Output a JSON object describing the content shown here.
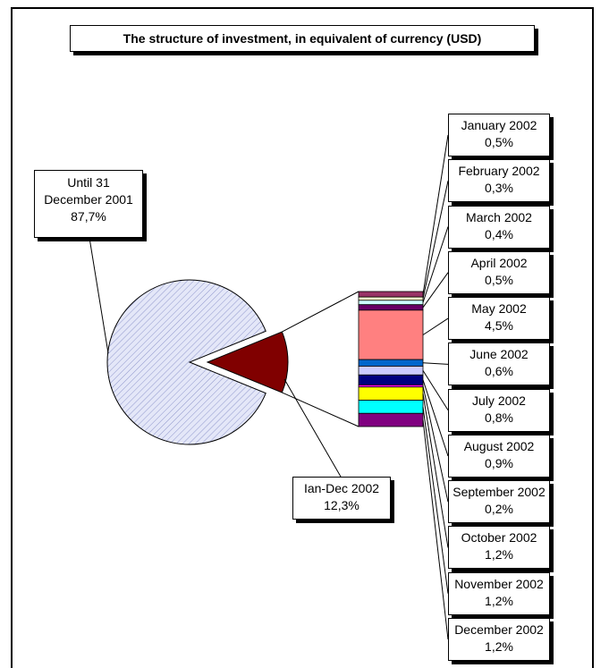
{
  "chart_data": {
    "type": "pie",
    "title": "The structure of investment, in equivalent of currency (USD)",
    "categories": [
      "Until 31 December 2001",
      "Ian-Dec 2002"
    ],
    "values": [
      87.7,
      12.3
    ],
    "value_labels": [
      "87,7%",
      "12,3%"
    ],
    "colors": [
      "#dfe3f7",
      "#800000"
    ],
    "breakout": {
      "categories": [
        "January 2002",
        "February 2002",
        "March 2002",
        "April 2002",
        "May 2002",
        "June 2002",
        "July 2002",
        "August 2002",
        "September 2002",
        "October 2002",
        "November 2002",
        "December 2002"
      ],
      "values": [
        0.5,
        0.3,
        0.4,
        0.5,
        4.5,
        0.6,
        0.8,
        0.9,
        0.2,
        1.2,
        1.2,
        1.2
      ],
      "value_labels": [
        "0,5%",
        "0,3%",
        "0,4%",
        "0,5%",
        "4,5%",
        "0,6%",
        "0,8%",
        "0,9%",
        "0,2%",
        "1,2%",
        "1,2%",
        "1,2%"
      ],
      "colors": [
        "#993366",
        "#ffffcc",
        "#ccffff",
        "#660066",
        "#ff8080",
        "#0066cc",
        "#ccccff",
        "#000080",
        "#ff00ff",
        "#ffff00",
        "#00ffff",
        "#800080"
      ]
    }
  }
}
